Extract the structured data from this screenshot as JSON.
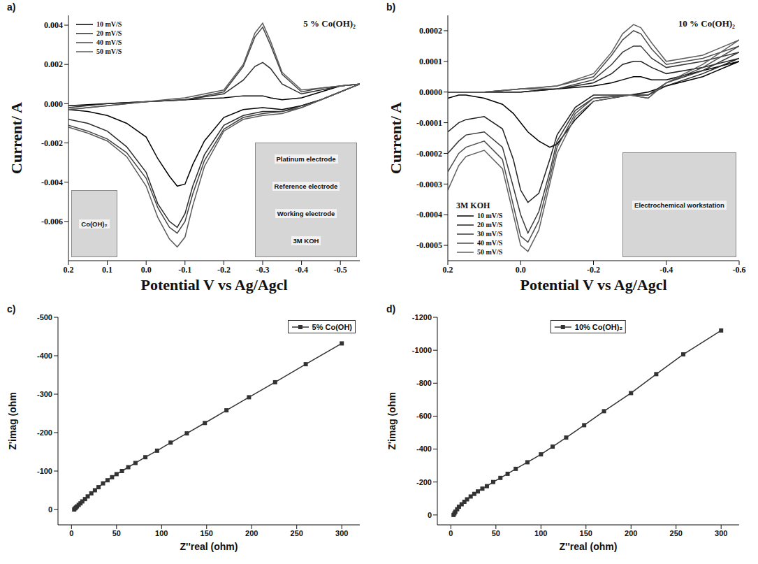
{
  "chart_data": [
    {
      "type": "line",
      "panel": "a)",
      "title": "5 % Co(OH)₂",
      "xlabel": "Potential V vs Ag/Agcl",
      "ylabel": "Current/ A",
      "x": [
        0.2,
        0.15,
        0.1,
        0.05,
        0.0,
        -0.03,
        -0.06,
        -0.08,
        -0.1,
        -0.12,
        -0.15,
        -0.2,
        -0.25,
        -0.3,
        -0.35,
        -0.4,
        -0.45,
        -0.5,
        -0.55,
        -0.5,
        -0.45,
        -0.4,
        -0.35,
        -0.32,
        -0.3,
        -0.28,
        -0.25,
        -0.2,
        -0.1,
        0.0,
        0.1,
        0.2
      ],
      "series": [
        {
          "name": "10 mV/S",
          "color": "#000000",
          "values": [
            -0.0003,
            -0.0004,
            -0.0006,
            -0.001,
            -0.0017,
            -0.0028,
            -0.0037,
            -0.0042,
            -0.0041,
            -0.0031,
            -0.0019,
            -0.0007,
            -0.0003,
            -0.0002,
            -0.0003,
            -0.0001,
            0.0002,
            0.0006,
            0.001,
            0.0009,
            0.0006,
            0.0003,
            0.0002,
            0.0003,
            0.0004,
            0.0004,
            0.0004,
            0.0003,
            0.0002,
            0.0001,
            0,
            -0.0001
          ]
        },
        {
          "name": "20 mV/S",
          "color": "#2b2b2b",
          "values": [
            -0.0008,
            -0.001,
            -0.0014,
            -0.0022,
            -0.0035,
            -0.0051,
            -0.006,
            -0.0063,
            -0.0056,
            -0.0042,
            -0.0026,
            -0.0011,
            -0.0006,
            -0.0004,
            -0.0004,
            -0.0001,
            0.0002,
            0.0006,
            0.001,
            0.0009,
            0.0007,
            0.0005,
            0.001,
            0.0018,
            0.0021,
            0.0019,
            0.0012,
            0.0005,
            0.0002,
            0.0001,
            0,
            -0.0002
          ]
        },
        {
          "name": "40 mV/S",
          "color": "#444444",
          "values": [
            -0.0011,
            -0.0014,
            -0.0018,
            -0.0025,
            -0.0038,
            -0.0053,
            -0.0063,
            -0.0066,
            -0.006,
            -0.0046,
            -0.0029,
            -0.0013,
            -0.0007,
            -0.0005,
            -0.0004,
            -0.0002,
            0.0002,
            0.0006,
            0.001,
            0.0009,
            0.0008,
            0.0006,
            0.0015,
            0.003,
            0.0039,
            0.0034,
            0.0019,
            0.0006,
            0.0002,
            0.0001,
            -0.0001,
            -0.0003
          ]
        },
        {
          "name": "50 mV/S",
          "color": "#5a5a5a",
          "values": [
            -0.0012,
            -0.0015,
            -0.0019,
            -0.0027,
            -0.0042,
            -0.0058,
            -0.0069,
            -0.0073,
            -0.0068,
            -0.0052,
            -0.0032,
            -0.0014,
            -0.0008,
            -0.0006,
            -0.0005,
            -0.0002,
            0.0002,
            0.0006,
            0.001,
            0.0009,
            0.0008,
            0.0007,
            0.0016,
            0.0032,
            0.0041,
            0.0036,
            0.002,
            0.0007,
            0.0003,
            0.0001,
            -0.0001,
            -0.0003
          ]
        }
      ],
      "xlim": [
        0.2,
        -0.55
      ],
      "xticks": [
        0.2,
        0.1,
        {
          "value": 0,
          "label": "0.0"
        },
        -0.1,
        -0.2,
        -0.3,
        -0.4,
        -0.5
      ],
      "ylim": [
        -0.008,
        0.0045
      ],
      "yticks": [
        0.004,
        0.002,
        {
          "value": 0,
          "label": "0.000"
        },
        -0.002,
        -0.004,
        -0.006
      ],
      "legend": "top-left",
      "insets": [
        {
          "labels": [
            "Co(OH)₂"
          ]
        },
        {
          "labels": [
            "Platinum electrode",
            "Reference electrode",
            "Working electrode",
            "3M KOH"
          ]
        }
      ]
    },
    {
      "type": "line",
      "panel": "b)",
      "title": "10 % Co(OH)₂",
      "xlabel": "Potential V vs Ag/Agcl",
      "ylabel": "Current/ A",
      "x": [
        0.2,
        0.17,
        0.15,
        0.1,
        0.05,
        0.02,
        0,
        -0.02,
        -0.05,
        -0.08,
        -0.1,
        -0.15,
        -0.2,
        -0.3,
        -0.35,
        -0.4,
        -0.5,
        -0.6,
        -0.5,
        -0.4,
        -0.36,
        -0.33,
        -0.31,
        -0.28,
        -0.25,
        -0.2,
        -0.1,
        0,
        0.1,
        0.15,
        0.2
      ],
      "series": [
        {
          "name": "10 mV/S",
          "color": "#000000",
          "values": [
            -2e-05,
            -1e-05,
            -1e-05,
            -2e-05,
            -4e-05,
            -7e-05,
            -0.0001,
            -0.00013,
            -0.00016,
            -0.00018,
            -0.00017,
            -9e-05,
            -3e-05,
            -1e-05,
            0,
            2e-05,
            5e-05,
            0.0001,
            7e-05,
            4e-05,
            4e-05,
            5e-05,
            5e-05,
            4e-05,
            3e-05,
            2e-05,
            1e-05,
            0,
            0,
            0,
            0
          ]
        },
        {
          "name": "20 mV/S",
          "color": "#222222",
          "values": [
            -0.00013,
            -0.0001,
            -9e-05,
            -8e-05,
            -0.00012,
            -0.00022,
            -0.00032,
            -0.00036,
            -0.00033,
            -0.00022,
            -0.00014,
            -5e-05,
            -1e-05,
            -1e-05,
            -1e-05,
            2e-05,
            6e-05,
            0.00011,
            8e-05,
            6e-05,
            8e-05,
            0.0001,
            0.0001,
            9e-05,
            6e-05,
            3e-05,
            1e-05,
            0,
            0,
            0,
            0
          ]
        },
        {
          "name": "30 mV/S",
          "color": "#3a3a3a",
          "values": [
            -0.0002,
            -0.00016,
            -0.00014,
            -0.00013,
            -0.00018,
            -0.00031,
            -0.0004,
            -0.00046,
            -0.00039,
            -0.00026,
            -0.00016,
            -6e-05,
            -2e-05,
            -1e-05,
            -1e-05,
            3e-05,
            7e-05,
            0.00013,
            0.0001,
            8e-05,
            0.00011,
            0.00015,
            0.00015,
            0.00013,
            9e-05,
            4e-05,
            1e-05,
            1e-05,
            0,
            0,
            0
          ]
        },
        {
          "name": "40 mV/S",
          "color": "#4d4d4d",
          "values": [
            -0.00026,
            -0.0002,
            -0.00018,
            -0.00016,
            -0.00022,
            -0.00037,
            -0.00047,
            -0.00049,
            -0.00042,
            -0.00028,
            -0.00018,
            -7e-05,
            -2e-05,
            -1e-05,
            -2e-05,
            3e-05,
            8e-05,
            0.00015,
            0.00011,
            9e-05,
            0.00014,
            0.00019,
            0.0002,
            0.00017,
            0.00012,
            5e-05,
            2e-05,
            1e-05,
            0,
            0,
            0
          ]
        },
        {
          "name": "50 mV/S",
          "color": "#606060",
          "values": [
            -0.00032,
            -0.00024,
            -0.00021,
            -0.00019,
            -0.00025,
            -0.0004,
            -0.0005,
            -0.00052,
            -0.00045,
            -0.0003,
            -0.0002,
            -8e-05,
            -3e-05,
            -1e-05,
            -2e-05,
            3e-05,
            9e-05,
            0.00017,
            0.00012,
            0.0001,
            0.00016,
            0.00021,
            0.00022,
            0.00019,
            0.00013,
            6e-05,
            2e-05,
            1e-05,
            0,
            0,
            0
          ]
        }
      ],
      "xlim": [
        0.2,
        -0.6
      ],
      "xticks": [
        0.2,
        {
          "value": 0,
          "label": "0.0"
        },
        -0.2,
        -0.4,
        -0.6
      ],
      "ylim": [
        -0.00055,
        0.00025
      ],
      "yticks": [
        0.0002,
        0.0001,
        {
          "value": 0,
          "label": "0.0000"
        },
        -0.0001,
        -0.0002,
        -0.0003,
        -0.0004,
        -0.0005
      ],
      "legend": "bottom-left",
      "annotations": [
        "3M KOH"
      ],
      "insets": [
        {
          "labels": [
            "Electrochemical workstation"
          ]
        }
      ]
    },
    {
      "type": "line",
      "panel": "c)",
      "xlabel": "Z''real (ohm)",
      "ylabel": "Z'imag (ohm",
      "x": [
        3,
        4,
        5,
        6,
        8,
        10,
        12,
        15,
        18,
        22,
        26,
        30,
        35,
        40,
        45,
        50,
        56,
        63,
        71,
        82,
        95,
        110,
        128,
        148,
        172,
        197,
        226,
        260,
        300
      ],
      "series": [
        {
          "name": "5% Co(OH)",
          "color": "#333333",
          "marker": "square",
          "values": [
            0,
            -3,
            -5,
            -8,
            -12,
            -16,
            -21,
            -27,
            -34,
            -42,
            -50,
            -58,
            -68,
            -76,
            -84,
            -92,
            -100,
            -110,
            -121,
            -136,
            -153,
            -174,
            -198,
            -225,
            -258,
            -292,
            -331,
            -378,
            -432
          ]
        }
      ],
      "xlim": [
        -15,
        320
      ],
      "xticks": [
        0,
        50,
        100,
        150,
        200,
        250,
        300
      ],
      "ylim": [
        40,
        -500
      ],
      "yticks": [
        -500,
        -400,
        -300,
        -200,
        -100,
        0
      ],
      "legend": "top-right"
    },
    {
      "type": "line",
      "panel": "d)",
      "xlabel": "Z''real (ohm)",
      "ylabel": "Z'imag (ohm",
      "x": [
        3,
        4,
        5,
        7,
        9,
        12,
        15,
        18,
        22,
        26,
        30,
        35,
        40,
        47,
        55,
        63,
        72,
        85,
        100,
        113,
        128,
        148,
        170,
        200,
        228,
        258,
        300
      ],
      "series": [
        {
          "name": "10% Co(OH)₂",
          "color": "#333333",
          "marker": "square",
          "values": [
            0,
            -10,
            -20,
            -35,
            -50,
            -65,
            -80,
            -95,
            -112,
            -128,
            -143,
            -160,
            -175,
            -200,
            -225,
            -250,
            -280,
            -320,
            -368,
            -415,
            -470,
            -545,
            -630,
            -740,
            -855,
            -975,
            -1120
          ]
        }
      ],
      "xlim": [
        -15,
        320
      ],
      "xticks": [
        0,
        50,
        100,
        150,
        200,
        250,
        300
      ],
      "ylim": [
        60,
        -1200
      ],
      "yticks": [
        -1200,
        -1000,
        -800,
        -600,
        -400,
        -200,
        0
      ],
      "legend": "top"
    }
  ]
}
